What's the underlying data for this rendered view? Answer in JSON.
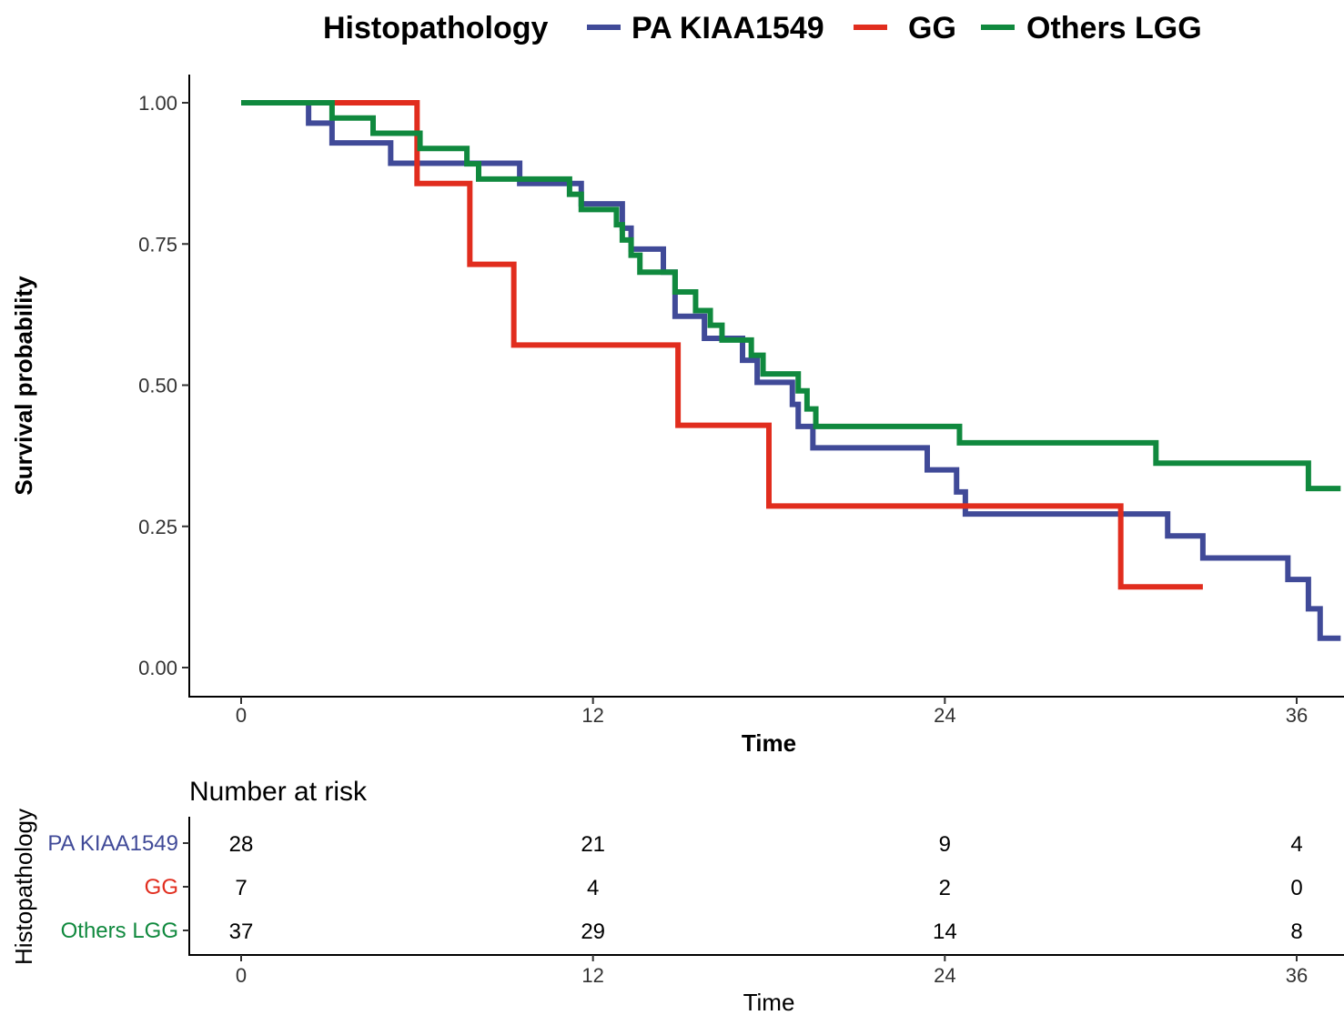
{
  "legend": {
    "title": "Histopathology",
    "entries": [
      {
        "label": "PA KIAA1549",
        "color": "#404A98"
      },
      {
        "label": "GG",
        "color": "#E12D1E"
      },
      {
        "label": "Others LGG",
        "color": "#10893E"
      }
    ]
  },
  "chart_data": [
    {
      "type": "line",
      "subtype": "kaplan-meier step",
      "xlabel": "Time",
      "ylabel": "Survival probability",
      "xlim": [
        0,
        36
      ],
      "ylim": [
        0,
        1
      ],
      "x_ticks": [
        "0",
        "12",
        "24",
        "36"
      ],
      "y_ticks": [
        "0.00",
        "0.25",
        "0.50",
        "0.75",
        "1.00"
      ],
      "grid": false,
      "legend_position": "top",
      "series": [
        {
          "name": "PA KIAA1549",
          "color": "#404A98",
          "steps": [
            [
              0,
              1.0
            ],
            [
              2.3,
              0.964
            ],
            [
              3.1,
              0.929
            ],
            [
              5.1,
              0.893
            ],
            [
              9.5,
              0.857
            ],
            [
              11.6,
              0.821
            ],
            [
              13.0,
              0.778
            ],
            [
              13.3,
              0.741
            ],
            [
              14.4,
              0.7
            ],
            [
              14.8,
              0.622
            ],
            [
              15.8,
              0.583
            ],
            [
              17.1,
              0.544
            ],
            [
              17.6,
              0.505
            ],
            [
              18.8,
              0.466
            ],
            [
              19.0,
              0.427
            ],
            [
              19.5,
              0.389
            ],
            [
              23.4,
              0.35
            ],
            [
              24.4,
              0.311
            ],
            [
              24.7,
              0.272
            ],
            [
              31.6,
              0.233
            ],
            [
              32.8,
              0.194
            ],
            [
              35.7,
              0.156
            ],
            [
              36.4,
              0.104
            ],
            [
              36.8,
              0.052
            ],
            [
              37.5,
              0.052
            ]
          ]
        },
        {
          "name": "GG",
          "color": "#E12D1E",
          "steps": [
            [
              0,
              1.0
            ],
            [
              6.0,
              0.857
            ],
            [
              7.8,
              0.714
            ],
            [
              9.3,
              0.571
            ],
            [
              14.9,
              0.429
            ],
            [
              18.0,
              0.286
            ],
            [
              30.0,
              0.143
            ],
            [
              32.8,
              0.143
            ]
          ]
        },
        {
          "name": "Others LGG",
          "color": "#10893E",
          "steps": [
            [
              0,
              1.0
            ],
            [
              3.1,
              0.973
            ],
            [
              4.5,
              0.946
            ],
            [
              6.1,
              0.919
            ],
            [
              7.7,
              0.892
            ],
            [
              8.1,
              0.865
            ],
            [
              11.2,
              0.838
            ],
            [
              11.6,
              0.811
            ],
            [
              12.8,
              0.784
            ],
            [
              13.0,
              0.757
            ],
            [
              13.3,
              0.73
            ],
            [
              13.6,
              0.7
            ],
            [
              14.8,
              0.665
            ],
            [
              15.5,
              0.632
            ],
            [
              16.0,
              0.606
            ],
            [
              16.4,
              0.58
            ],
            [
              17.4,
              0.553
            ],
            [
              17.8,
              0.52
            ],
            [
              19.0,
              0.49
            ],
            [
              19.3,
              0.458
            ],
            [
              19.6,
              0.427
            ],
            [
              24.5,
              0.398
            ],
            [
              31.2,
              0.362
            ],
            [
              36.4,
              0.317
            ],
            [
              37.5,
              0.317
            ]
          ]
        }
      ]
    },
    {
      "type": "table",
      "title": "Number at risk",
      "row_axis_label": "Histopathology",
      "xlabel": "Time",
      "columns": [
        "0",
        "12",
        "24",
        "36"
      ],
      "rows": [
        {
          "label": "PA KIAA1549",
          "color": "#404A98",
          "values": [
            "28",
            "21",
            "9",
            "4"
          ]
        },
        {
          "label": "GG",
          "color": "#E12D1E",
          "values": [
            "7",
            "4",
            "2",
            "0"
          ]
        },
        {
          "label": "Others LGG",
          "color": "#10893E",
          "values": [
            "37",
            "29",
            "14",
            "8"
          ]
        }
      ]
    }
  ]
}
